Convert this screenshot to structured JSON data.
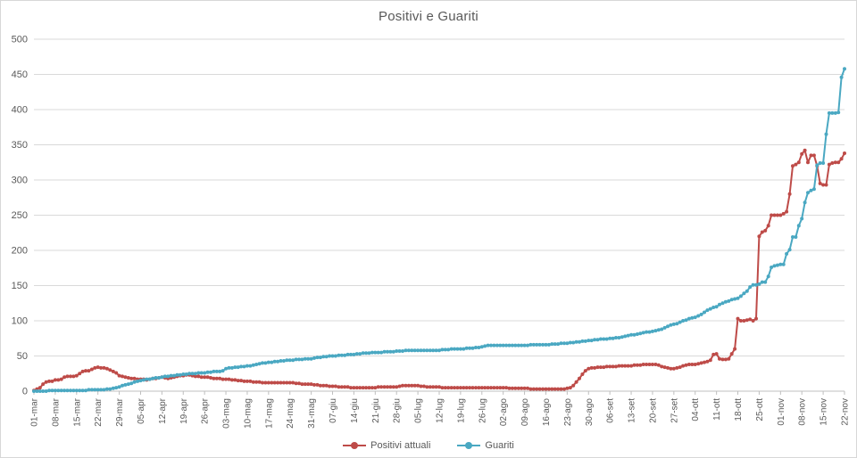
{
  "chart_data": {
    "type": "line",
    "title": "Positivi e Guariti",
    "xlabel": "",
    "ylabel": "",
    "ylim": [
      0,
      500
    ],
    "y_ticks": [
      0,
      50,
      100,
      150,
      200,
      250,
      300,
      350,
      400,
      450,
      500
    ],
    "x_tick_labels": [
      "01-mar",
      "08-mar",
      "15-mar",
      "22-mar",
      "29-mar",
      "05-apr",
      "12-apr",
      "19-apr",
      "26-apr",
      "03-mag",
      "10-mag",
      "17-mag",
      "24-mag",
      "31-mag",
      "07-giu",
      "14-giu",
      "21-giu",
      "28-giu",
      "05-lug",
      "12-lug",
      "19-lug",
      "26-lug",
      "02-ago",
      "09-ago",
      "16-ago",
      "23-ago",
      "30-ago",
      "06-set",
      "13-set",
      "20-set",
      "27-set",
      "04-ott",
      "11-ott",
      "18-ott",
      "25-ott",
      "01-nov",
      "08-nov",
      "15-nov",
      "22-nov"
    ],
    "x_description": "daily data points from 01-mar to 22-nov; axis ticks mark weeks (every 7th point)",
    "points_per_series": 267,
    "grid": "horizontal",
    "legend_position": "bottom-center",
    "marker": "circle",
    "series": [
      {
        "name": "Positivi attuali",
        "color": "#BE4B48",
        "values": [
          1,
          3,
          5,
          10,
          13,
          14,
          14,
          16,
          16,
          17,
          20,
          21,
          21,
          21,
          22,
          25,
          28,
          29,
          29,
          31,
          33,
          34,
          33,
          33,
          32,
          30,
          28,
          26,
          22,
          21,
          20,
          19,
          18,
          18,
          17,
          17,
          17,
          16,
          17,
          18,
          18,
          19,
          20,
          19,
          18,
          19,
          20,
          21,
          22,
          22,
          23,
          23,
          22,
          21,
          21,
          20,
          20,
          20,
          19,
          18,
          18,
          18,
          17,
          17,
          17,
          16,
          16,
          15,
          15,
          14,
          14,
          14,
          13,
          13,
          13,
          12,
          12,
          12,
          12,
          12,
          12,
          12,
          12,
          12,
          12,
          12,
          11,
          11,
          10,
          10,
          10,
          10,
          9,
          9,
          8,
          8,
          8,
          7,
          7,
          7,
          6,
          6,
          6,
          6,
          5,
          5,
          5,
          5,
          5,
          5,
          5,
          5,
          5,
          6,
          6,
          6,
          6,
          6,
          6,
          6,
          7,
          8,
          8,
          8,
          8,
          8,
          8,
          7,
          7,
          6,
          6,
          6,
          6,
          6,
          5,
          5,
          5,
          5,
          5,
          5,
          5,
          5,
          5,
          5,
          5,
          5,
          5,
          5,
          5,
          5,
          5,
          5,
          5,
          5,
          5,
          5,
          4,
          4,
          4,
          4,
          4,
          4,
          4,
          3,
          3,
          3,
          3,
          3,
          3,
          3,
          3,
          3,
          3,
          3,
          3,
          4,
          5,
          8,
          13,
          18,
          24,
          29,
          32,
          33,
          33,
          34,
          34,
          34,
          35,
          35,
          35,
          35,
          36,
          36,
          36,
          36,
          36,
          37,
          37,
          37,
          38,
          38,
          38,
          38,
          38,
          37,
          35,
          34,
          33,
          32,
          32,
          33,
          34,
          36,
          37,
          38,
          38,
          38,
          39,
          40,
          41,
          42,
          44,
          52,
          53,
          46,
          45,
          45,
          46,
          53,
          60,
          103,
          100,
          100,
          101,
          102,
          100,
          103,
          220,
          226,
          228,
          235,
          250,
          250,
          250,
          250,
          252,
          255,
          280,
          320,
          322,
          325,
          337,
          342,
          325,
          335,
          335,
          320,
          295,
          293,
          293,
          322,
          324,
          325,
          325,
          330,
          338
        ]
      },
      {
        "name": "Guariti",
        "color": "#4AA8C2",
        "values": [
          0,
          0,
          0,
          0,
          0,
          1,
          1,
          1,
          1,
          1,
          1,
          1,
          1,
          1,
          1,
          1,
          1,
          1,
          2,
          2,
          2,
          2,
          2,
          2,
          3,
          3,
          4,
          5,
          6,
          8,
          9,
          10,
          11,
          13,
          14,
          15,
          16,
          17,
          17,
          18,
          19,
          19,
          20,
          21,
          21,
          22,
          22,
          23,
          23,
          24,
          24,
          25,
          25,
          25,
          26,
          26,
          26,
          27,
          27,
          28,
          28,
          28,
          29,
          32,
          33,
          33,
          34,
          34,
          35,
          35,
          36,
          36,
          37,
          38,
          39,
          40,
          40,
          41,
          41,
          42,
          42,
          43,
          43,
          44,
          44,
          44,
          45,
          45,
          45,
          46,
          46,
          46,
          47,
          48,
          48,
          49,
          49,
          50,
          50,
          50,
          51,
          51,
          51,
          52,
          52,
          52,
          53,
          53,
          54,
          54,
          54,
          55,
          55,
          55,
          55,
          56,
          56,
          56,
          56,
          57,
          57,
          57,
          58,
          58,
          58,
          58,
          58,
          58,
          58,
          58,
          58,
          58,
          58,
          58,
          59,
          59,
          59,
          60,
          60,
          60,
          60,
          60,
          61,
          61,
          61,
          62,
          62,
          63,
          64,
          65,
          65,
          65,
          65,
          65,
          65,
          65,
          65,
          65,
          65,
          65,
          65,
          65,
          65,
          66,
          66,
          66,
          66,
          66,
          66,
          66,
          67,
          67,
          67,
          68,
          68,
          68,
          69,
          69,
          70,
          70,
          71,
          71,
          72,
          72,
          73,
          73,
          74,
          74,
          74,
          75,
          75,
          76,
          76,
          77,
          78,
          79,
          80,
          80,
          81,
          82,
          83,
          84,
          84,
          85,
          86,
          87,
          88,
          90,
          92,
          94,
          95,
          96,
          98,
          100,
          101,
          103,
          104,
          105,
          107,
          109,
          112,
          115,
          117,
          119,
          120,
          123,
          125,
          127,
          128,
          130,
          131,
          132,
          135,
          139,
          142,
          148,
          151,
          151,
          152,
          155,
          155,
          163,
          176,
          178,
          179,
          180,
          180,
          195,
          201,
          219,
          219,
          235,
          245,
          268,
          282,
          285,
          287,
          321,
          324,
          324,
          365,
          395,
          395,
          395,
          396,
          446,
          458
        ]
      }
    ]
  },
  "colors": {
    "axis_text": "#595959",
    "title_text": "#595959",
    "gridline": "#d9d9d9",
    "axis_line": "#bfbfbf",
    "background": "#ffffff",
    "frame_border": "#d7d7d7"
  }
}
